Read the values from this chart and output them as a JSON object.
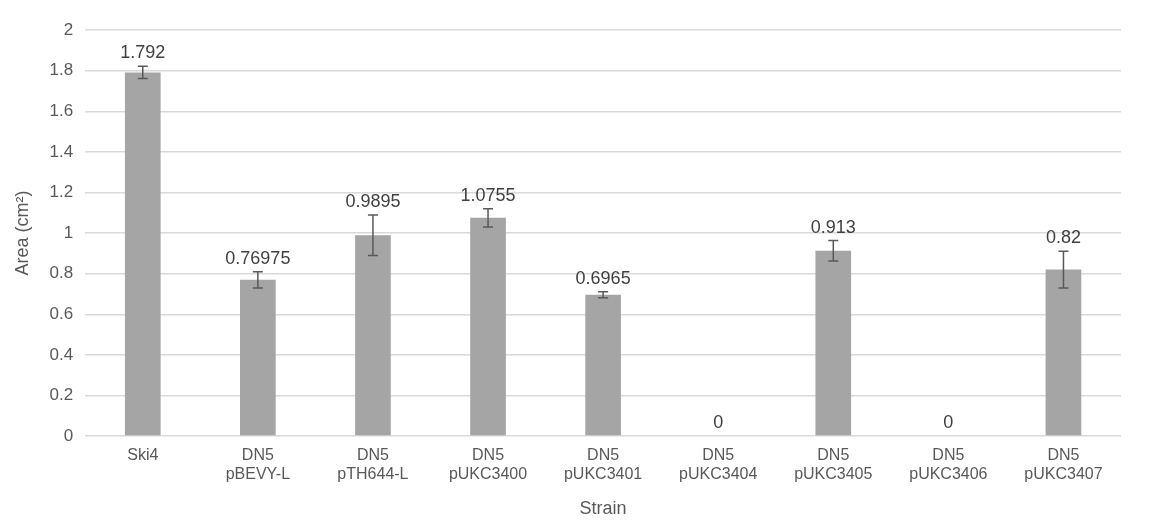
{
  "chart_data": {
    "type": "bar",
    "xlabel": "Strain",
    "ylabel": "Area (cm²)",
    "categories": [
      "Ski4",
      "DN5 pBEVY-L",
      "DN5 pTH644-L",
      "DN5 pUKC3400",
      "DN5 pUKC3401",
      "DN5 pUKC3404",
      "DN5 pUKC3405",
      "DN5 pUKC3406",
      "DN5 pUKC3407"
    ],
    "values": [
      1.792,
      0.76975,
      0.9895,
      1.0755,
      0.6965,
      0,
      0.913,
      0,
      0.82
    ],
    "errors": [
      0.03,
      0.04,
      0.1,
      0.045,
      0.015,
      null,
      0.05,
      null,
      0.09
    ],
    "color": "#a5a5a5",
    "ylim": [
      0,
      2
    ],
    "yticks": [
      0,
      0.2,
      0.4,
      0.6,
      0.8,
      1,
      1.2,
      1.4,
      1.6,
      1.8,
      2
    ],
    "grid": "y",
    "data_labels": true,
    "legend": false
  }
}
